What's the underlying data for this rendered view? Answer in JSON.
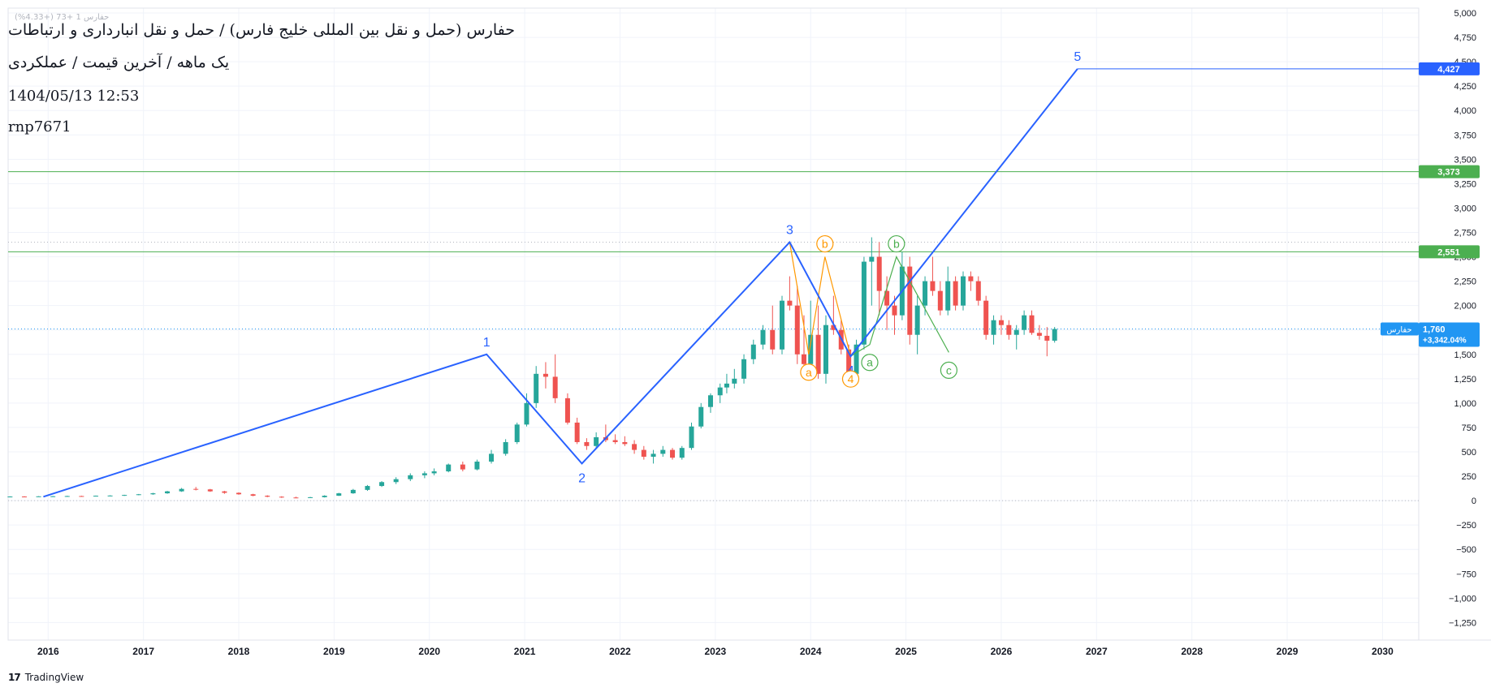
{
  "info": {
    "title": "حفارس (حمل و نقل بین المللی خلیج فارس) / حمل و نقل انبارداری و ارتباطات",
    "subtitle": "یک ماهه / آخرین قیمت / عملکردی",
    "datetime": "1404/05/13 12:53",
    "user": "rnp7671",
    "faint_legend": "حفارس 1  +73 (+4.33%)"
  },
  "footer": {
    "brand": "TradingView"
  },
  "colors": {
    "up": "#26a69a",
    "down": "#ef5350",
    "wave": "#2962ff",
    "level": "#4caf50",
    "abc_orange": "#ff9800",
    "abc_green": "#4caf50",
    "price_tag": "#2196f3",
    "grid": "#f0f3fa",
    "axis_text": "#131722"
  },
  "chart_data": {
    "type": "candlestick",
    "symbol_tag": "حفارس",
    "y_axis": {
      "ticks": [
        5000,
        4750,
        4500,
        4250,
        4000,
        3750,
        3500,
        3250,
        3000,
        2750,
        2500,
        2250,
        2000,
        1750,
        1500,
        1250,
        1000,
        750,
        500,
        250,
        0,
        -250,
        -500,
        -750,
        -1000,
        -1250
      ],
      "tick_labels": [
        "5,000",
        "4,750",
        "4,500",
        "4,250",
        "4,000",
        "3,750",
        "3,500",
        "3,250",
        "3,000",
        "2,750",
        "2,500",
        "2,250",
        "2,000",
        "1,750",
        "1,500",
        "1,250",
        "1,000",
        "750",
        "500",
        "250",
        "0",
        "−250",
        "−500",
        "−750",
        "−1,000",
        "−1,250"
      ],
      "range": [
        -1430,
        5050
      ]
    },
    "x_axis": {
      "ticks": [
        2016,
        2017,
        2018,
        2019,
        2020,
        2021,
        2022,
        2023,
        2024,
        2025,
        2026,
        2027,
        2028,
        2029,
        2030
      ],
      "range": [
        2015.58,
        2030.38
      ]
    },
    "candles": [
      [
        2015.6,
        40,
        44,
        36,
        42
      ],
      [
        2015.75,
        42,
        45,
        39,
        41
      ],
      [
        2015.9,
        41,
        46,
        40,
        44
      ],
      [
        2016.05,
        44,
        48,
        40,
        45
      ],
      [
        2016.2,
        45,
        50,
        42,
        47
      ],
      [
        2016.35,
        47,
        50,
        43,
        46
      ],
      [
        2016.5,
        46,
        52,
        44,
        50
      ],
      [
        2016.65,
        50,
        55,
        47,
        52
      ],
      [
        2016.8,
        52,
        60,
        49,
        58
      ],
      [
        2016.95,
        58,
        68,
        55,
        65
      ],
      [
        2017.1,
        65,
        80,
        60,
        75
      ],
      [
        2017.25,
        75,
        100,
        70,
        95
      ],
      [
        2017.4,
        95,
        130,
        90,
        120
      ],
      [
        2017.55,
        120,
        140,
        105,
        115
      ],
      [
        2017.7,
        115,
        120,
        90,
        95
      ],
      [
        2017.85,
        95,
        100,
        70,
        80
      ],
      [
        2018.0,
        80,
        85,
        60,
        65
      ],
      [
        2018.15,
        65,
        70,
        45,
        50
      ],
      [
        2018.3,
        50,
        55,
        35,
        40
      ],
      [
        2018.45,
        40,
        45,
        28,
        32
      ],
      [
        2018.6,
        32,
        40,
        25,
        30
      ],
      [
        2018.75,
        30,
        38,
        26,
        35
      ],
      [
        2018.9,
        35,
        55,
        32,
        50
      ],
      [
        2019.05,
        50,
        80,
        48,
        75
      ],
      [
        2019.2,
        75,
        120,
        70,
        110
      ],
      [
        2019.35,
        110,
        160,
        100,
        150
      ],
      [
        2019.5,
        150,
        200,
        140,
        190
      ],
      [
        2019.65,
        190,
        240,
        170,
        220
      ],
      [
        2019.8,
        220,
        280,
        200,
        260
      ],
      [
        2019.95,
        260,
        300,
        230,
        280
      ],
      [
        2020.05,
        280,
        330,
        260,
        300
      ],
      [
        2020.2,
        300,
        380,
        290,
        370
      ],
      [
        2020.35,
        370,
        400,
        300,
        320
      ],
      [
        2020.5,
        320,
        420,
        310,
        400
      ],
      [
        2020.65,
        400,
        520,
        380,
        480
      ],
      [
        2020.8,
        480,
        630,
        460,
        600
      ],
      [
        2020.92,
        600,
        800,
        580,
        780
      ],
      [
        2021.02,
        780,
        1100,
        760,
        1000
      ],
      [
        2021.12,
        1000,
        1380,
        950,
        1300
      ],
      [
        2021.22,
        1300,
        1420,
        1150,
        1270
      ],
      [
        2021.32,
        1270,
        1500,
        1000,
        1050
      ],
      [
        2021.45,
        1050,
        1100,
        780,
        800
      ],
      [
        2021.55,
        800,
        850,
        580,
        600
      ],
      [
        2021.65,
        600,
        640,
        520,
        560
      ],
      [
        2021.75,
        560,
        700,
        530,
        650
      ],
      [
        2021.85,
        650,
        780,
        600,
        620
      ],
      [
        2021.95,
        620,
        680,
        580,
        600
      ],
      [
        2022.05,
        600,
        660,
        560,
        580
      ],
      [
        2022.15,
        580,
        620,
        480,
        520
      ],
      [
        2022.25,
        520,
        560,
        420,
        450
      ],
      [
        2022.35,
        450,
        520,
        380,
        480
      ],
      [
        2022.45,
        480,
        560,
        450,
        520
      ],
      [
        2022.55,
        520,
        540,
        420,
        440
      ],
      [
        2022.65,
        440,
        560,
        420,
        540
      ],
      [
        2022.75,
        540,
        800,
        520,
        760
      ],
      [
        2022.85,
        760,
        1000,
        740,
        960
      ],
      [
        2022.95,
        960,
        1100,
        900,
        1080
      ],
      [
        2023.05,
        1080,
        1200,
        1000,
        1160
      ],
      [
        2023.12,
        1160,
        1300,
        1100,
        1200
      ],
      [
        2023.2,
        1200,
        1350,
        1150,
        1250
      ],
      [
        2023.3,
        1250,
        1500,
        1200,
        1450
      ],
      [
        2023.4,
        1450,
        1650,
        1400,
        1600
      ],
      [
        2023.5,
        1600,
        1800,
        1550,
        1750
      ],
      [
        2023.6,
        1750,
        2000,
        1500,
        1550
      ],
      [
        2023.7,
        1550,
        2100,
        1500,
        2050
      ],
      [
        2023.78,
        2050,
        2300,
        1950,
        2000
      ],
      [
        2023.86,
        2000,
        2200,
        1400,
        1500
      ],
      [
        2023.93,
        1500,
        1900,
        1350,
        1400
      ],
      [
        2024.0,
        1400,
        2050,
        1300,
        1700
      ],
      [
        2024.08,
        1700,
        2000,
        1250,
        1300
      ],
      [
        2024.16,
        1300,
        1900,
        1200,
        1800
      ],
      [
        2024.24,
        1800,
        2100,
        1700,
        1750
      ],
      [
        2024.32,
        1750,
        1850,
        1500,
        1550
      ],
      [
        2024.4,
        1550,
        1600,
        1250,
        1300
      ],
      [
        2024.48,
        1300,
        1650,
        1250,
        1600
      ],
      [
        2024.56,
        1600,
        2500,
        1550,
        2450
      ],
      [
        2024.64,
        2450,
        2700,
        2000,
        2500
      ],
      [
        2024.72,
        2500,
        2650,
        1900,
        2150
      ],
      [
        2024.8,
        2150,
        2300,
        1750,
        2000
      ],
      [
        2024.88,
        2000,
        2100,
        1700,
        1900
      ],
      [
        2024.96,
        1900,
        2550,
        1850,
        2400
      ],
      [
        2025.04,
        2400,
        2500,
        1600,
        1700
      ],
      [
        2025.12,
        1700,
        2100,
        1500,
        2000
      ],
      [
        2025.2,
        2000,
        2300,
        1900,
        2250
      ],
      [
        2025.28,
        2250,
        2500,
        2100,
        2150
      ],
      [
        2025.36,
        2150,
        2250,
        1900,
        1950
      ],
      [
        2025.44,
        1950,
        2400,
        1900,
        2250
      ],
      [
        2025.52,
        2250,
        2300,
        1950,
        2000
      ],
      [
        2025.6,
        2000,
        2350,
        1950,
        2300
      ],
      [
        2025.68,
        2300,
        2350,
        2150,
        2250
      ],
      [
        2025.76,
        2250,
        2300,
        2000,
        2050
      ],
      [
        2025.84,
        2050,
        2100,
        1650,
        1700
      ],
      [
        2025.92,
        1700,
        1900,
        1600,
        1850
      ],
      [
        2026.0,
        1850,
        1900,
        1700,
        1800
      ],
      [
        2026.08,
        1800,
        1850,
        1650,
        1700
      ],
      [
        2026.16,
        1700,
        1800,
        1550,
        1750
      ],
      [
        2026.24,
        1750,
        1950,
        1700,
        1900
      ],
      [
        2026.32,
        1900,
        1950,
        1700,
        1720
      ],
      [
        2026.4,
        1720,
        1800,
        1650,
        1690
      ],
      [
        2026.48,
        1690,
        1780,
        1480,
        1640
      ],
      [
        2026.56,
        1640,
        1780,
        1620,
        1760
      ]
    ],
    "candle_fields": [
      "x",
      "open",
      "high",
      "low",
      "close"
    ],
    "wave_main": [
      [
        2015.95,
        40
      ],
      [
        2020.6,
        1500
      ],
      [
        2021.6,
        380
      ],
      [
        2023.78,
        2650
      ],
      [
        2024.42,
        1480
      ],
      [
        2026.8,
        4427
      ]
    ],
    "wave_labels": [
      {
        "label": "1",
        "x": 2020.6,
        "y": 1500,
        "pos": "above"
      },
      {
        "label": "2",
        "x": 2021.6,
        "y": 380,
        "pos": "below"
      },
      {
        "label": "3",
        "x": 2023.78,
        "y": 2650,
        "pos": "above"
      },
      {
        "label": "4",
        "x": 2024.42,
        "y": 1480,
        "pos": "below"
      },
      {
        "label": "5",
        "x": 2026.8,
        "y": 4427,
        "pos": "above"
      }
    ],
    "abc_orange": {
      "path": [
        [
          2023.78,
          2650
        ],
        [
          2023.98,
          1500
        ],
        [
          2024.15,
          2500
        ],
        [
          2024.42,
          1480
        ]
      ],
      "labels": [
        {
          "label": "a",
          "x": 2023.98,
          "y": 1500
        },
        {
          "label": "b",
          "x": 2024.15,
          "y": 2500
        },
        {
          "label": "4",
          "x": 2024.42,
          "y": 1480
        }
      ]
    },
    "abc_green": {
      "path": [
        [
          2024.42,
          1480
        ],
        [
          2024.62,
          1600
        ],
        [
          2024.9,
          2500
        ],
        [
          2025.45,
          1520
        ]
      ],
      "labels": [
        {
          "label": "a",
          "x": 2024.62,
          "y": 1600
        },
        {
          "label": "b",
          "x": 2024.9,
          "y": 2500
        },
        {
          "label": "c",
          "x": 2025.45,
          "y": 1520
        }
      ]
    },
    "hlines": [
      {
        "price": 3373,
        "label": "3,373",
        "style": "solid",
        "color": "level"
      },
      {
        "price": 2551,
        "label": "2,551",
        "style": "solid",
        "color": "level"
      },
      {
        "price": 2650,
        "label": "",
        "style": "dotted",
        "color": "grey"
      },
      {
        "price": 1760,
        "label": "",
        "style": "dotted",
        "color": "price"
      },
      {
        "price": 0,
        "label": "",
        "style": "dotted",
        "color": "grey"
      },
      {
        "price": 4427,
        "label": "4,427",
        "style": "solid",
        "color": "wave",
        "x_from": 2026.8
      }
    ],
    "last_price": {
      "value": "1,760",
      "change": "+3,342.04%",
      "price": 1760
    }
  }
}
